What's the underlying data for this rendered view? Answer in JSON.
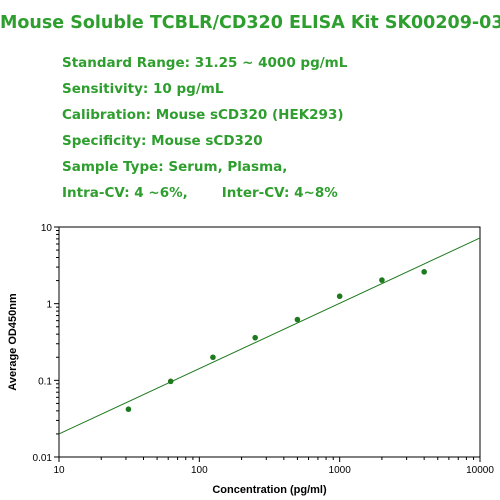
{
  "header": {
    "title": "Mouse Soluble TCBLR/CD320 ELISA Kit SK00209-03",
    "specs": {
      "standard_range": "Standard Range: 31.25 ~ 4000 pg/mL",
      "sensitivity": "Sensitivity: 10 pg/mL",
      "calibration": "Calibration: Mouse sCD320 (HEK293)",
      "specificity": "Specificity: Mouse sCD320",
      "sample_type": "Sample Type: Serum, Plasma,",
      "intra_cv": "Intra-CV: 4 ~6%,",
      "inter_cv": "Inter-CV: 4~8%"
    }
  },
  "colors": {
    "title_green": "#2e9e2e",
    "series_green": "#1f7a1f",
    "axis": "#000000"
  },
  "chart_data": {
    "type": "scatter",
    "title": "",
    "xlabel": "Concentration (pg/ml)",
    "ylabel": "Average OD450nm",
    "xscale": "log",
    "yscale": "log",
    "xlim": [
      10,
      10000
    ],
    "ylim": [
      0.01,
      10
    ],
    "xticks": [
      "10",
      "100",
      "1000",
      "10000"
    ],
    "yticks": [
      "0.01",
      "0.1",
      "1",
      "10"
    ],
    "grid": false,
    "legend": "none",
    "series": [
      {
        "x": [
          31.25,
          62.5,
          125,
          250,
          500,
          1000,
          2000,
          4000
        ],
        "y": [
          0.042,
          0.097,
          0.2,
          0.36,
          0.62,
          1.25,
          2.03,
          2.6
        ]
      }
    ],
    "fit_line": {
      "x": [
        10,
        10000
      ],
      "y": [
        0.02,
        7.2
      ]
    }
  }
}
